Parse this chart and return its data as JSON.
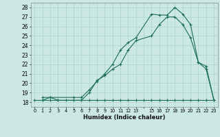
{
  "xlabel": "Humidex (Indice chaleur)",
  "background_color": "#cce8e4",
  "grid_color": "#aad4cc",
  "line_color": "#1a6b5a",
  "xlim": [
    -0.5,
    23.5
  ],
  "ylim": [
    17.5,
    28.5
  ],
  "xtick_labels": [
    "0",
    "1",
    "2",
    "3",
    "4",
    "5",
    "6",
    "7",
    "8",
    "9",
    "10",
    "11",
    "12",
    "13",
    "",
    "15",
    "16",
    "17",
    "18",
    "19",
    "20",
    "21",
    "22",
    "23"
  ],
  "xtick_pos": [
    0,
    1,
    2,
    3,
    4,
    5,
    6,
    7,
    8,
    9,
    10,
    11,
    12,
    13,
    14,
    15,
    16,
    17,
    18,
    19,
    20,
    21,
    22,
    23
  ],
  "yticks": [
    18,
    19,
    20,
    21,
    22,
    23,
    24,
    25,
    26,
    27,
    28
  ],
  "series1_x": [
    0,
    1,
    2,
    3,
    4,
    5,
    6,
    7,
    8,
    9,
    10,
    11,
    12,
    13,
    14,
    15,
    16,
    17,
    18,
    19,
    20,
    21,
    22,
    23
  ],
  "series1_y": [
    18.2,
    18.2,
    18.2,
    18.2,
    18.2,
    18.2,
    18.2,
    18.2,
    18.2,
    18.2,
    18.2,
    18.2,
    18.2,
    18.2,
    18.2,
    18.2,
    18.2,
    18.2,
    18.2,
    18.2,
    18.2,
    18.2,
    18.2,
    18.2
  ],
  "series2_x": [
    1,
    2,
    3,
    5,
    6,
    7,
    8,
    9,
    10,
    11,
    12,
    13,
    15,
    16,
    17,
    18,
    19,
    20,
    21,
    22,
    23
  ],
  "series2_y": [
    18.2,
    18.5,
    18.2,
    18.2,
    18.2,
    19.0,
    20.3,
    20.8,
    21.5,
    22.0,
    23.5,
    24.5,
    25.0,
    26.2,
    27.0,
    27.0,
    26.2,
    24.8,
    22.2,
    21.5,
    18.2
  ],
  "series3_x": [
    1,
    2,
    5,
    6,
    7,
    8,
    9,
    10,
    11,
    12,
    13,
    15,
    16,
    17,
    18,
    19,
    20,
    21,
    22,
    23
  ],
  "series3_y": [
    18.5,
    18.5,
    18.5,
    18.5,
    19.3,
    20.2,
    21.0,
    22.0,
    23.5,
    24.3,
    24.8,
    27.3,
    27.2,
    27.2,
    28.0,
    27.3,
    26.2,
    22.2,
    21.8,
    18.2
  ]
}
